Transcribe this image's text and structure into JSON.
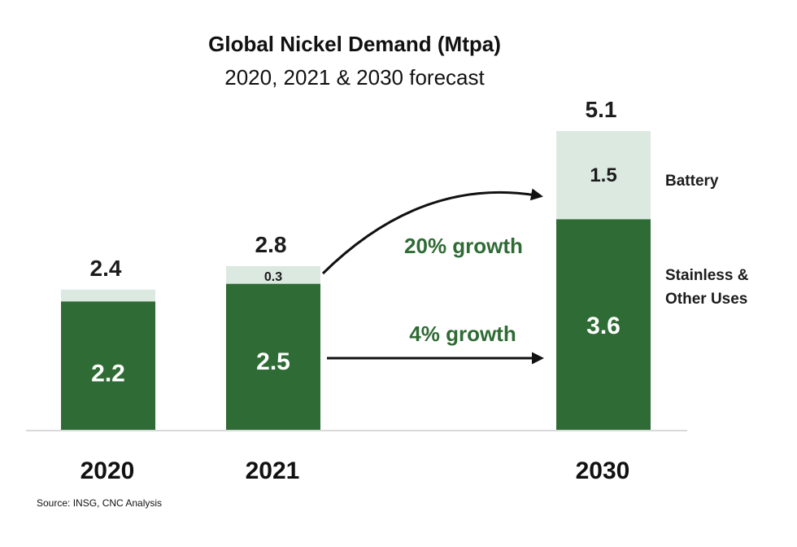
{
  "chart_data": {
    "type": "bar",
    "stacked": true,
    "title": "Global Nickel Demand (Mtpa)",
    "subtitle": "2020, 2021 & 2030 forecast",
    "xlabel": "",
    "ylabel": "",
    "ylim": [
      0,
      5.1
    ],
    "grid": false,
    "categories": [
      "2020",
      "2021",
      "2030"
    ],
    "series": [
      {
        "name": "Stainless & Other Uses",
        "values": [
          2.2,
          2.5,
          3.6
        ],
        "color": "#2f6b35",
        "labels": [
          "2.2",
          "2.5",
          "3.6"
        ]
      },
      {
        "name": "Battery",
        "values": [
          0.2,
          0.3,
          1.5
        ],
        "color": "#dce9e1",
        "labels": [
          "",
          "0.3",
          "1.5"
        ]
      }
    ],
    "totals": [
      2.4,
      2.8,
      5.1
    ],
    "total_labels": [
      "2.4",
      "2.8",
      "5.1"
    ],
    "legend": {
      "placement": "right",
      "entries": [
        "Battery",
        "Stainless & Other Uses"
      ],
      "stainless_lines": [
        "Stainless &",
        "Other Uses"
      ]
    },
    "annotations": [
      {
        "text": "20% growth",
        "series": "Battery",
        "from": "2021",
        "to": "2030",
        "arrow": "curved"
      },
      {
        "text": "4% growth",
        "series": "Stainless & Other Uses",
        "from": "2021",
        "to": "2030",
        "arrow": "straight"
      }
    ],
    "source": "Source: INSG, CNC Analysis",
    "colors": {
      "accent_text": "#2f6b35",
      "axis": "#d9d9d9",
      "arrow": "#111111"
    }
  }
}
